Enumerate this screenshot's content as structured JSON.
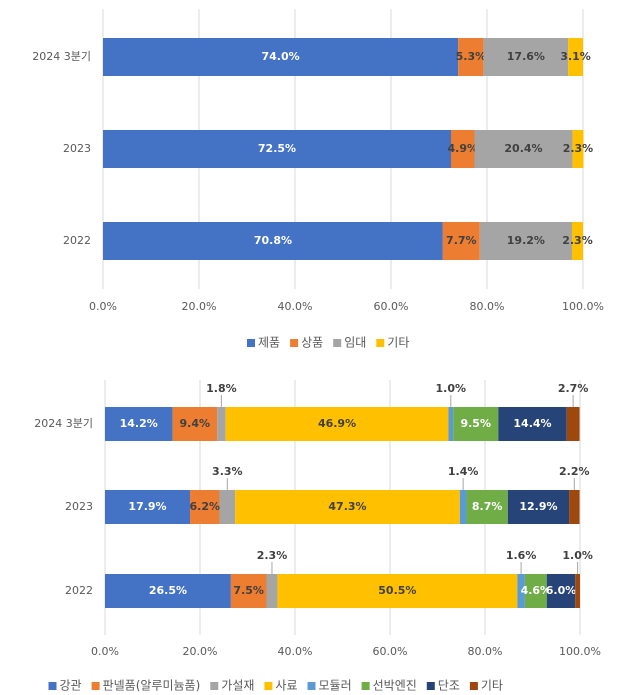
{
  "chart_data": [
    {
      "type": "bar",
      "orientation": "horizontal",
      "stacked": true,
      "categories": [
        "2024 3분기",
        "2023",
        "2022"
      ],
      "series": [
        {
          "name": "제품",
          "color": "#4472c4",
          "values": [
            74.0,
            72.5,
            70.8
          ],
          "value_labels": [
            "74.0%",
            "72.5%",
            "70.8%"
          ]
        },
        {
          "name": "상품",
          "color": "#ed7d31",
          "values": [
            5.3,
            4.9,
            7.7
          ],
          "value_labels": [
            "5.3%",
            "4.9%",
            "7.7%"
          ]
        },
        {
          "name": "임대",
          "color": "#a5a5a5",
          "values": [
            17.6,
            20.4,
            19.2
          ],
          "value_labels": [
            "17.6%",
            "20.4%",
            "19.2%"
          ]
        },
        {
          "name": "기타",
          "color": "#ffc000",
          "values": [
            3.1,
            2.3,
            2.3
          ],
          "value_labels": [
            "3.1%",
            "2.3%",
            "2.3%"
          ]
        }
      ],
      "xlim": [
        0,
        100
      ],
      "xticks": [
        {
          "value": 0,
          "label": "0.0%"
        },
        {
          "value": 20,
          "label": "20.0%"
        },
        {
          "value": 40,
          "label": "40.0%"
        },
        {
          "value": 60,
          "label": "60.0%"
        },
        {
          "value": 80,
          "label": "80.0%"
        },
        {
          "value": 100,
          "label": "100.0%"
        }
      ],
      "grid": true,
      "legend": "bottom"
    },
    {
      "type": "bar",
      "orientation": "horizontal",
      "stacked": true,
      "categories": [
        "2024 3분기",
        "2023",
        "2022"
      ],
      "series": [
        {
          "name": "강관",
          "color": "#4472c4",
          "values": [
            14.2,
            17.9,
            26.5
          ],
          "value_labels": [
            "14.2%",
            "17.9%",
            "26.5%"
          ]
        },
        {
          "name": "판넬품(알루미늄품)",
          "color": "#ed7d31",
          "values": [
            9.4,
            6.2,
            7.5
          ],
          "value_labels": [
            "9.4%",
            "6.2%",
            "7.5%"
          ]
        },
        {
          "name": "가설재",
          "color": "#a5a5a5",
          "values": [
            1.8,
            3.3,
            2.3
          ],
          "value_labels": [
            "1.8%",
            "3.3%",
            "2.3%"
          ]
        },
        {
          "name": "사료",
          "color": "#ffc000",
          "values": [
            46.9,
            47.3,
            50.5
          ],
          "value_labels": [
            "46.9%",
            "47.3%",
            "50.5%"
          ]
        },
        {
          "name": "모듈러",
          "color": "#5b9bd5",
          "values": [
            1.0,
            1.4,
            1.6
          ],
          "value_labels": [
            "1.0%",
            "1.4%",
            "1.6%"
          ]
        },
        {
          "name": "선박엔진",
          "color": "#70ad47",
          "values": [
            9.5,
            8.7,
            4.6
          ],
          "value_labels": [
            "9.5%",
            "8.7%",
            "4.6%"
          ]
        },
        {
          "name": "단조",
          "color": "#264478",
          "values": [
            14.4,
            12.9,
            6.0
          ],
          "value_labels": [
            "14.4%",
            "12.9%",
            "6.0%"
          ]
        },
        {
          "name": "기타",
          "color": "#9e480e",
          "values": [
            2.7,
            2.2,
            1.0
          ],
          "value_labels": [
            "2.7%",
            "2.2%",
            "1.0%"
          ]
        }
      ],
      "xlim": [
        0,
        100
      ],
      "xticks": [
        {
          "value": 0,
          "label": "0.0%"
        },
        {
          "value": 20,
          "label": "20.0%"
        },
        {
          "value": 40,
          "label": "40.0%"
        },
        {
          "value": 60,
          "label": "60.0%"
        },
        {
          "value": 80,
          "label": "80.0%"
        },
        {
          "value": 100,
          "label": "100.0%"
        }
      ],
      "grid": true,
      "legend": "bottom"
    }
  ]
}
